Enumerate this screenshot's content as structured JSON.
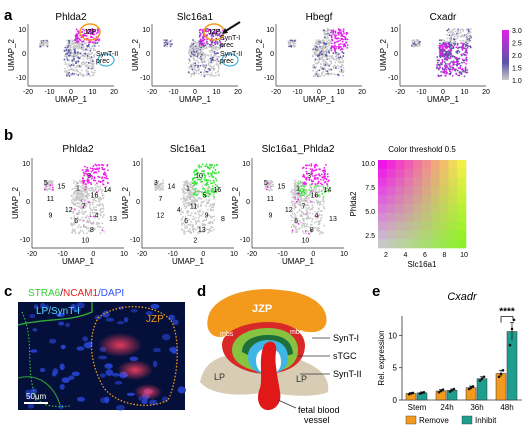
{
  "panel_a": {
    "letter": "a",
    "plots": [
      {
        "title": "Phlda2",
        "labels": {
          "jzp": "JZP",
          "synt2": "SynT-II\nprec"
        }
      },
      {
        "title": "Slc16a1",
        "labels": {
          "jzp": "JZP",
          "synt1": "SynT-I\nprec",
          "synt2": "SynT-II\nprec"
        }
      },
      {
        "title": "Hbegf"
      },
      {
        "title": "Cxadr"
      }
    ],
    "xlabel": "UMAP_1",
    "ylabel": "UMAP_2",
    "xticks": [
      "-20",
      "-10",
      "0",
      "10",
      "20"
    ],
    "yticks": [
      "10",
      "0",
      "-10"
    ],
    "colorbar_ticks": [
      "3.0",
      "2.5",
      "2.0",
      "1.5",
      "1.0"
    ],
    "colors": {
      "high": "#e020e8",
      "mid": "#5a55a8",
      "low": "#c8c8c8"
    }
  },
  "panel_b": {
    "letter": "b",
    "plots": [
      {
        "title": "Phlda2",
        "clusters": [
          "5",
          "15",
          "1",
          "14",
          "11",
          "16",
          "7",
          "9",
          "12",
          "4",
          "6",
          "13",
          "8",
          "3",
          "10"
        ]
      },
      {
        "title": "Slc16a1",
        "clusters": [
          "3",
          "14",
          "1",
          "16",
          "7",
          "5",
          "11",
          "12",
          "4",
          "9",
          "6",
          "8",
          "13",
          "10",
          "2"
        ]
      },
      {
        "title": "Slc16a1_Phlda2",
        "clusters": [
          "5",
          "15",
          "1",
          "14",
          "11",
          "16",
          "7",
          "9",
          "12",
          "4",
          "6",
          "13",
          "8",
          "3",
          "10"
        ]
      }
    ],
    "xlabel": "UMAP_1",
    "ylabel": "UMAP_2",
    "xticks": [
      "-20",
      "-10",
      "0",
      "10"
    ],
    "yticks": [
      "10",
      "0",
      "-10"
    ],
    "legend": {
      "title": "Color threshold 0.5",
      "xlabel": "Slc16a1",
      "ylabel": "Phlda2",
      "xticks": [
        "2",
        "4",
        "6",
        "8",
        "10"
      ],
      "yticks": [
        "10.0",
        "7.5",
        "5.0",
        "2.5"
      ]
    },
    "colors": {
      "pink": "#f020e8",
      "green": "#33e833"
    }
  },
  "panel_c": {
    "letter": "c",
    "title_parts": [
      {
        "text": "STRA6",
        "color": "#2fd02f"
      },
      {
        "text": "/",
        "color": "#222222"
      },
      {
        "text": "NCAM1",
        "color": "#e02020"
      },
      {
        "text": "/DAPI",
        "color": "#3050ff"
      }
    ],
    "label_lp": "LP/SynT-I",
    "label_jzp": "JZP",
    "scale_bar": "50µm"
  },
  "panel_d": {
    "letter": "d",
    "labels": {
      "jzp": "JZP",
      "mbs_left": "mbs",
      "mbs_right": "mbs",
      "synt1": "SynT-I",
      "stgc": "sTGC",
      "synt2": "SynT-II",
      "lp_left": "LP",
      "lp_right": "LP",
      "vessel": "fetal blood\nvessel"
    },
    "colors": {
      "jzp": "#f39a1c",
      "mbs": "#d82828",
      "synt1": "#86c341",
      "stgc": "#1f6f3a",
      "synt2": "#3fb6e6",
      "lp": "#d8ccb4",
      "vessel": "#e01818"
    }
  },
  "panel_e": {
    "letter": "e",
    "significance": "****"
  },
  "chart_data": {
    "type": "bar",
    "title": "Cxadr",
    "ylabel": "Rel. expression",
    "xlabel": "",
    "categories": [
      "Stem",
      "24h",
      "36h",
      "48h"
    ],
    "ylim": [
      0,
      13
    ],
    "yticks": [
      "0",
      "5",
      "10"
    ],
    "legend_position": "bottom",
    "series": [
      {
        "name": "Remove",
        "color": "#f39a1c",
        "values": [
          1.0,
          1.4,
          1.9,
          4.1
        ],
        "errors": [
          0.15,
          0.2,
          0.25,
          0.5
        ],
        "points": [
          [
            0.9,
            1.0,
            1.1
          ],
          [
            1.2,
            1.4,
            1.6
          ],
          [
            1.7,
            1.9,
            2.1
          ],
          [
            3.6,
            4.0,
            4.6
          ]
        ]
      },
      {
        "name": "Inhibit",
        "color": "#1e9e8e",
        "values": [
          1.1,
          1.5,
          3.3,
          10.6
        ],
        "errors": [
          0.15,
          0.2,
          0.3,
          1.4
        ],
        "points": [
          [
            1.0,
            1.1,
            1.2
          ],
          [
            1.3,
            1.5,
            1.7
          ],
          [
            3.0,
            3.3,
            3.6
          ],
          [
            8.5,
            11.0,
            12.4
          ]
        ]
      }
    ]
  }
}
